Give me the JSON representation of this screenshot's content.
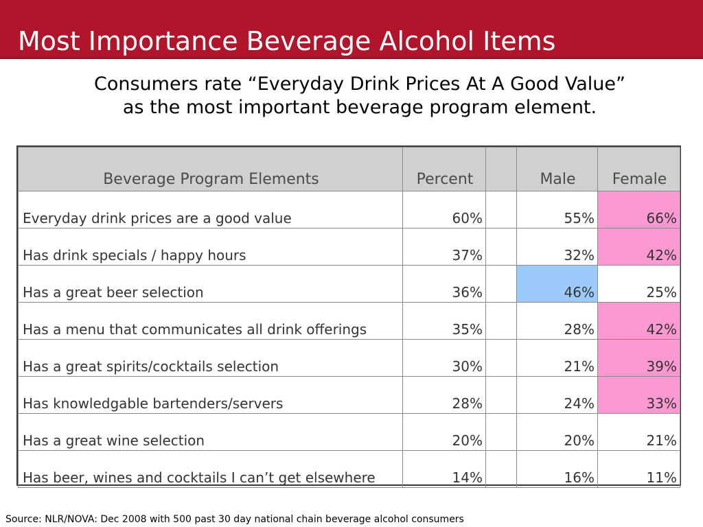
{
  "slide": {
    "title": "Most Importance Beverage Alcohol Items",
    "subtitle_line1": "Consumers rate “Everyday Drink Prices At A Good Value”",
    "subtitle_line2": "as the most important beverage program element.",
    "source": "Source: NLR/NOVA:  Dec 2008 with 500 past 30 day national chain beverage alcohol consumers",
    "colors": {
      "title_bar": "#b0152c",
      "female_highlight": "#fb9ad2",
      "male_highlight": "#9ccbfb",
      "header_bg": "#d0d0d0"
    }
  },
  "table": {
    "headers": {
      "element": "Beverage Program Elements",
      "percent": "Percent",
      "gap": "",
      "male": "Male",
      "female": "Female"
    },
    "rows": [
      {
        "element": "Everyday drink prices are a good value",
        "percent": "60%",
        "male": "55%",
        "female": "66%",
        "male_highlight": false,
        "female_highlight": true
      },
      {
        "element": "Has drink specials / happy hours",
        "percent": "37%",
        "male": "32%",
        "female": "42%",
        "male_highlight": false,
        "female_highlight": true
      },
      {
        "element": "Has a great beer selection",
        "percent": "36%",
        "male": "46%",
        "female": "25%",
        "male_highlight": true,
        "female_highlight": false
      },
      {
        "element": "Has a menu that communicates all drink offerings",
        "percent": "35%",
        "male": "28%",
        "female": "42%",
        "male_highlight": false,
        "female_highlight": true
      },
      {
        "element": "Has a great spirits/cocktails selection",
        "percent": "30%",
        "male": "21%",
        "female": "39%",
        "male_highlight": false,
        "female_highlight": true
      },
      {
        "element": "Has knowledgable bartenders/servers",
        "percent": "28%",
        "male": "24%",
        "female": "33%",
        "male_highlight": false,
        "female_highlight": true
      },
      {
        "element": "Has a great wine selection",
        "percent": "20%",
        "male": "20%",
        "female": "21%",
        "male_highlight": false,
        "female_highlight": false
      },
      {
        "element": "Has beer, wines and cocktails I can’t get elsewhere",
        "percent": "14%",
        "male": "16%",
        "female": "11%",
        "male_highlight": false,
        "female_highlight": false
      }
    ]
  }
}
